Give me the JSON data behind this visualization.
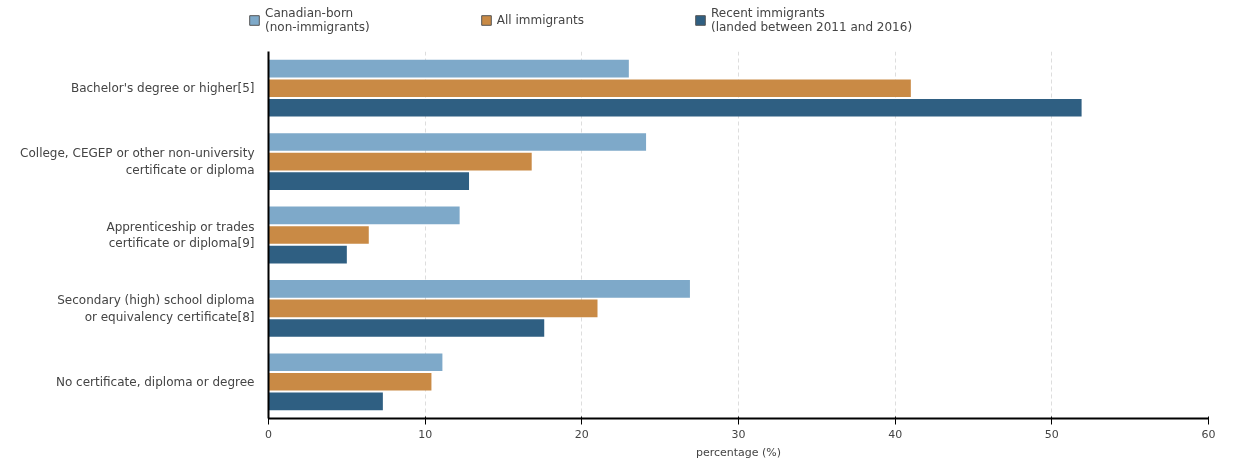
{
  "chart_data": {
    "type": "bar",
    "orientation": "horizontal",
    "xlabel": "percentage (%)",
    "categories": [
      "Bachelor's degree or higher[5]",
      "College, CEGEP or other non-university\ncertificate or diploma",
      "Apprenticeship or trades\ncertificate or diploma[9]",
      "Secondary (high) school diploma\nor equivalency certificate[8]",
      "No certificate, diploma or degree"
    ],
    "series": [
      {
        "name": "Canadian-born\n(non-immigrants)",
        "color": "#7ea9c9",
        "values": [
          23.0,
          24.1,
          12.2,
          26.9,
          11.1
        ]
      },
      {
        "name": "All immigrants",
        "color": "#c98a45",
        "values": [
          41.0,
          16.8,
          6.4,
          21.0,
          10.4
        ]
      },
      {
        "name": "Recent immigrants\n(landed between 2011 and 2016)",
        "color": "#2f5f82",
        "values": [
          51.9,
          12.8,
          5.0,
          17.6,
          7.3
        ]
      }
    ],
    "xlim": [
      0,
      60
    ],
    "xticks": [
      0,
      10,
      20,
      30,
      40,
      50,
      60
    ],
    "grid": "x",
    "legend": "top"
  }
}
